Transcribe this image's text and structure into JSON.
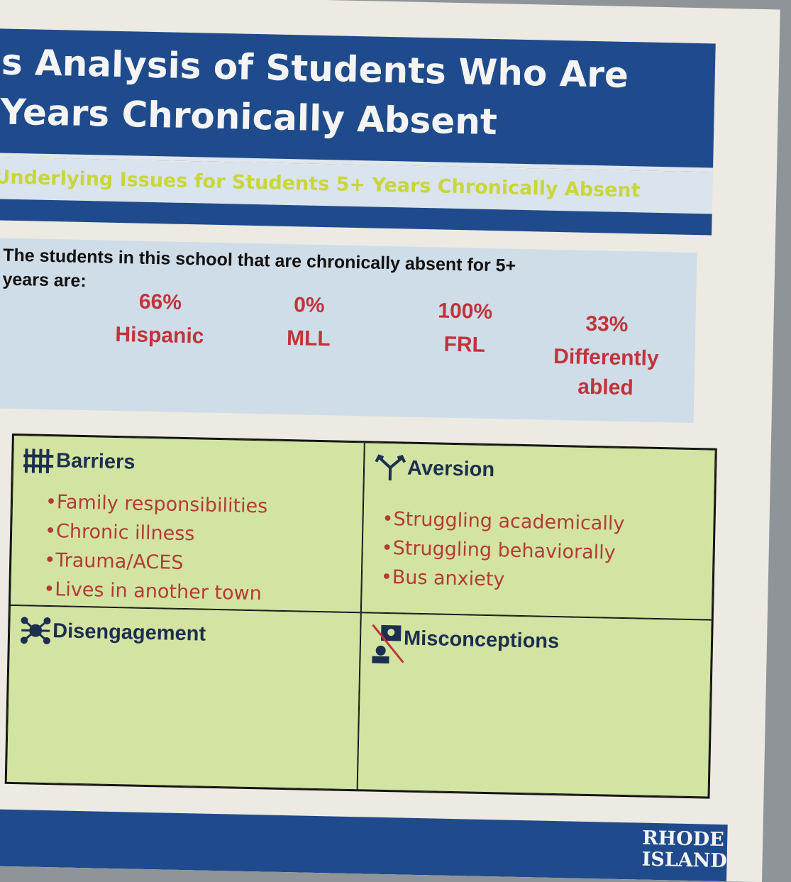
{
  "header": {
    "title_lines": [
      "s Analysis of Students Who Are",
      "Years Chronically Absent"
    ],
    "subtitle": "Underlying Issues for Students 5+ Years Chronically Absent"
  },
  "intro": {
    "text_lines": [
      "The students in this school that are chronically absent for 5+",
      "years are:"
    ],
    "stats": [
      {
        "value": "66%",
        "label": "Hispanic"
      },
      {
        "value": "0%",
        "label": "MLL"
      },
      {
        "value": "100%",
        "label": "FRL"
      },
      {
        "value": "33%",
        "label": "Differently abled"
      }
    ]
  },
  "quadrants": [
    {
      "title": "Barriers",
      "items": [
        "•Family responsibilities",
        "•Chronic illness",
        "•Trauma/ACES",
        "•Lives in another town"
      ]
    },
    {
      "title": "Aversion",
      "items": [
        "•Struggling academically",
        "•Struggling behaviorally",
        "•Bus anxiety"
      ]
    },
    {
      "title": "Disengagement",
      "items": []
    },
    {
      "title": "Misconceptions",
      "items": []
    }
  ],
  "footer": {
    "logo_lines": [
      "RHODE",
      "ISLAND"
    ]
  }
}
